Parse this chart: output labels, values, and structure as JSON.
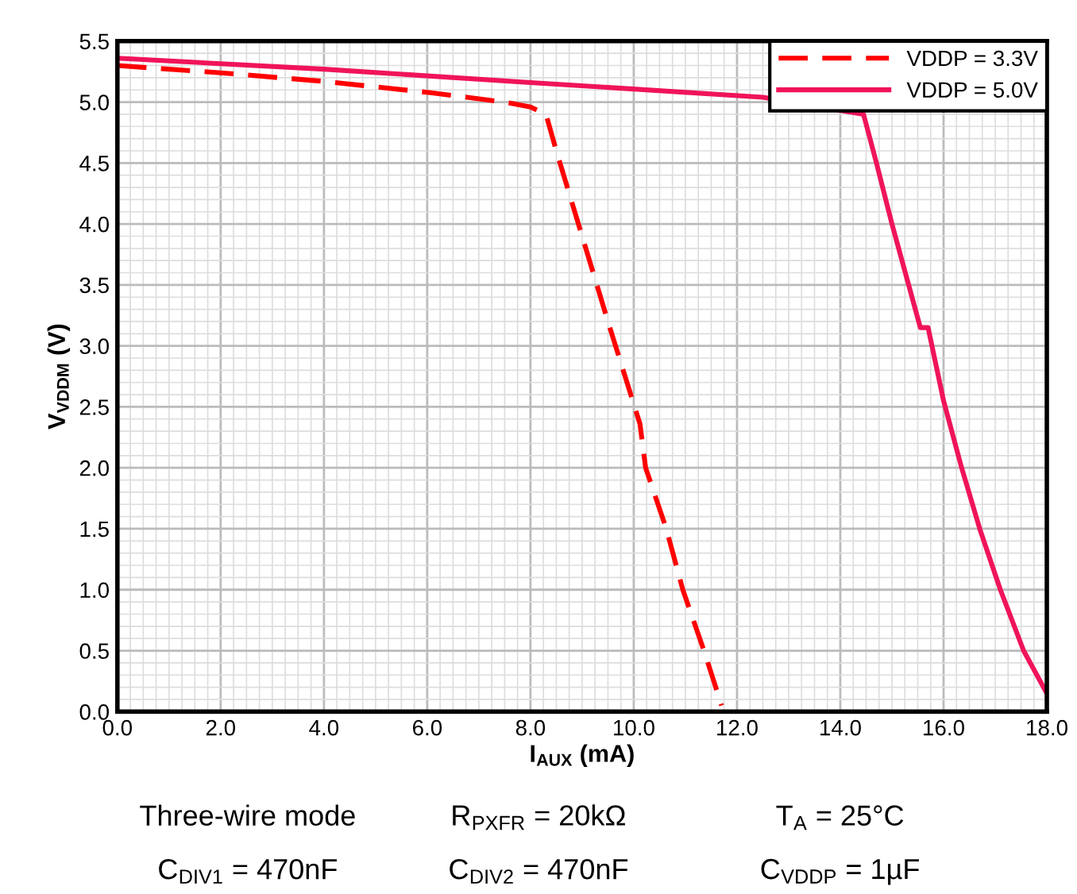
{
  "chart_data": {
    "type": "line",
    "xlabel": "I$_{AUX}$ (mA)",
    "ylabel": "V$_{VDDM}$ (V)",
    "xlim": [
      0,
      18
    ],
    "ylim": [
      0,
      5.5
    ],
    "xticks": [
      {
        "value": 0,
        "label": "0.0"
      },
      {
        "value": 2,
        "label": "2.0"
      },
      {
        "value": 4,
        "label": "4.0"
      },
      {
        "value": 6,
        "label": "6.0"
      },
      {
        "value": 8,
        "label": "8.0"
      },
      {
        "value": 10,
        "label": "10.0"
      },
      {
        "value": 12,
        "label": "12.0"
      },
      {
        "value": 14,
        "label": "14.0"
      },
      {
        "value": 16,
        "label": "16.0"
      },
      {
        "value": 18,
        "label": "18.0"
      }
    ],
    "yticks": [
      {
        "value": 0,
        "label": "0.0"
      },
      0.5,
      {
        "value": 1,
        "label": "1.0"
      },
      1.5,
      {
        "value": 2,
        "label": "2.0"
      },
      2.5,
      {
        "value": 3,
        "label": "3.0"
      },
      3.5,
      {
        "value": 4,
        "label": "4.0"
      },
      4.5,
      {
        "value": 5,
        "label": "5.0"
      },
      5.5
    ],
    "grid": true,
    "legend": "top right",
    "series": [
      {
        "name": "VDDP = 3.3V",
        "color": "#ff0000",
        "line_style": "dashed",
        "x": [
          0,
          2,
          4,
          6,
          7.5,
          8.0,
          8.3,
          8.5,
          9.0,
          9.5,
          10.12,
          10.23,
          10.63,
          10.95,
          11.36,
          11.55,
          11.7
        ],
        "values": [
          5.3,
          5.24,
          5.17,
          5.08,
          5.0,
          4.96,
          4.9,
          4.6,
          3.9,
          3.2,
          2.36,
          2.0,
          1.5,
          1.0,
          0.5,
          0.25,
          0.05
        ]
      },
      {
        "name": "VDDP = 5.0V",
        "color": "#f0145a",
        "line_style": "solid",
        "x": [
          0,
          4,
          8,
          12.5,
          14.45,
          14.7,
          15.0,
          15.55,
          15.7,
          16.0,
          16.35,
          16.7,
          17.1,
          17.55,
          18.0
        ],
        "values": [
          5.36,
          5.27,
          5.16,
          5.04,
          4.9,
          4.5,
          4.0,
          3.15,
          3.15,
          2.55,
          2.0,
          1.5,
          1.0,
          0.5,
          0.15
        ]
      }
    ],
    "annotations": [
      "Three-wire mode",
      "R$_{PXFR}$ = 20kΩ",
      "T$_{A}$ = 25°C",
      "C$_{DIV1}$ = 470nF",
      "C$_{DIV2}$ = 470nF",
      "C$_{VDDP}$ = 1µF"
    ]
  }
}
